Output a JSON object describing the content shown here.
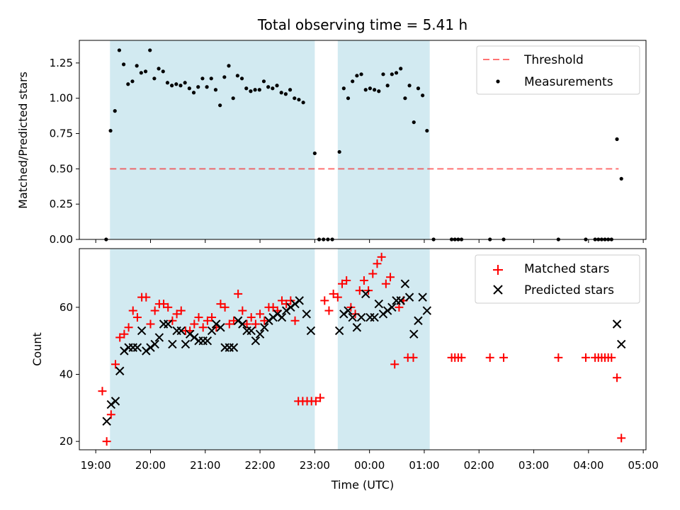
{
  "figure": {
    "title": "Total observing time = 5.41 h",
    "xlabel": "Time (UTC)",
    "x_ticks": [
      "19:00",
      "20:00",
      "21:00",
      "22:00",
      "23:00",
      "00:00",
      "01:00",
      "02:00",
      "03:00",
      "04:00",
      "05:00"
    ],
    "x_range_hours": [
      18.7,
      29.05
    ],
    "shaded_intervals_hours": [
      [
        19.26,
        23.0
      ],
      [
        23.42,
        25.1
      ]
    ],
    "colors": {
      "shade": "#add8e6",
      "threshold": "#ff0000",
      "matched": "#ff0000",
      "predicted": "#000000",
      "measurements": "#000000"
    }
  },
  "chart_data": [
    {
      "type": "scatter",
      "ylabel": "Matched/Predicted stars",
      "ylim": [
        0,
        1.41
      ],
      "yticks": [
        "0.00",
        "0.25",
        "0.50",
        "0.75",
        "1.00",
        "1.25"
      ],
      "legend_position": "top-right",
      "threshold": {
        "name": "Threshold",
        "y": 0.5,
        "x_range": [
          19.26,
          28.55
        ]
      },
      "series": [
        {
          "name": "Measurements",
          "points": [
            [
              19.19,
              0
            ],
            [
              19.27,
              0.77
            ],
            [
              19.35,
              0.91
            ],
            [
              19.43,
              1.34
            ],
            [
              19.51,
              1.24
            ],
            [
              19.59,
              1.1
            ],
            [
              19.67,
              1.12
            ],
            [
              19.75,
              1.23
            ],
            [
              19.83,
              1.18
            ],
            [
              19.91,
              1.19
            ],
            [
              19.99,
              1.34
            ],
            [
              20.07,
              1.14
            ],
            [
              20.15,
              1.21
            ],
            [
              20.23,
              1.19
            ],
            [
              20.31,
              1.11
            ],
            [
              20.39,
              1.09
            ],
            [
              20.47,
              1.1
            ],
            [
              20.55,
              1.09
            ],
            [
              20.63,
              1.11
            ],
            [
              20.71,
              1.07
            ],
            [
              20.79,
              1.04
            ],
            [
              20.87,
              1.08
            ],
            [
              20.95,
              1.14
            ],
            [
              21.03,
              1.08
            ],
            [
              21.11,
              1.14
            ],
            [
              21.19,
              1.06
            ],
            [
              21.27,
              0.95
            ],
            [
              21.35,
              1.15
            ],
            [
              21.43,
              1.23
            ],
            [
              21.51,
              1.0
            ],
            [
              21.59,
              1.16
            ],
            [
              21.67,
              1.14
            ],
            [
              21.75,
              1.07
            ],
            [
              21.83,
              1.05
            ],
            [
              21.91,
              1.06
            ],
            [
              21.99,
              1.06
            ],
            [
              22.07,
              1.12
            ],
            [
              22.15,
              1.08
            ],
            [
              22.23,
              1.07
            ],
            [
              22.31,
              1.09
            ],
            [
              22.39,
              1.04
            ],
            [
              22.47,
              1.03
            ],
            [
              22.55,
              1.06
            ],
            [
              22.63,
              1.0
            ],
            [
              22.71,
              0.99
            ],
            [
              22.79,
              0.97
            ],
            [
              23.0,
              0.61
            ],
            [
              23.08,
              0
            ],
            [
              23.16,
              0
            ],
            [
              23.24,
              0
            ],
            [
              23.32,
              0
            ],
            [
              23.45,
              0.62
            ],
            [
              23.53,
              1.07
            ],
            [
              23.61,
              1.0
            ],
            [
              23.69,
              1.12
            ],
            [
              23.77,
              1.16
            ],
            [
              23.85,
              1.17
            ],
            [
              23.93,
              1.06
            ],
            [
              24.01,
              1.07
            ],
            [
              24.09,
              1.06
            ],
            [
              24.17,
              1.05
            ],
            [
              24.25,
              1.17
            ],
            [
              24.33,
              1.09
            ],
            [
              24.41,
              1.17
            ],
            [
              24.49,
              1.18
            ],
            [
              24.57,
              1.21
            ],
            [
              24.65,
              1.0
            ],
            [
              24.73,
              1.09
            ],
            [
              24.81,
              0.83
            ],
            [
              24.89,
              1.07
            ],
            [
              24.97,
              1.02
            ],
            [
              25.05,
              0.77
            ],
            [
              25.17,
              0
            ],
            [
              25.5,
              0
            ],
            [
              25.56,
              0
            ],
            [
              25.62,
              0
            ],
            [
              25.68,
              0
            ],
            [
              26.2,
              0
            ],
            [
              26.45,
              0
            ],
            [
              27.45,
              0
            ],
            [
              27.95,
              0
            ],
            [
              28.12,
              0
            ],
            [
              28.18,
              0
            ],
            [
              28.24,
              0
            ],
            [
              28.3,
              0
            ],
            [
              28.36,
              0
            ],
            [
              28.42,
              0
            ],
            [
              28.52,
              0.71
            ],
            [
              28.6,
              0.43
            ]
          ]
        }
      ]
    },
    {
      "type": "scatter",
      "ylabel": "Count",
      "ylim": [
        17.5,
        77.5
      ],
      "yticks": [
        "20",
        "40",
        "60"
      ],
      "legend_position": "top-right",
      "series": [
        {
          "name": "Matched stars",
          "marker": "plus",
          "points": [
            [
              19.12,
              35
            ],
            [
              19.2,
              20
            ],
            [
              19.28,
              28
            ],
            [
              19.36,
              43
            ],
            [
              19.44,
              51
            ],
            [
              19.52,
              52
            ],
            [
              19.6,
              54
            ],
            [
              19.68,
              59
            ],
            [
              19.76,
              57
            ],
            [
              19.84,
              63
            ],
            [
              19.92,
              63
            ],
            [
              20.0,
              55
            ],
            [
              20.08,
              59
            ],
            [
              20.16,
              61
            ],
            [
              20.24,
              61
            ],
            [
              20.32,
              60
            ],
            [
              20.4,
              56
            ],
            [
              20.48,
              58
            ],
            [
              20.56,
              59
            ],
            [
              20.64,
              53
            ],
            [
              20.72,
              53
            ],
            [
              20.8,
              55
            ],
            [
              20.88,
              57
            ],
            [
              20.96,
              54
            ],
            [
              21.04,
              56
            ],
            [
              21.12,
              57
            ],
            [
              21.2,
              54
            ],
            [
              21.28,
              61
            ],
            [
              21.36,
              60
            ],
            [
              21.44,
              55
            ],
            [
              21.52,
              56
            ],
            [
              21.6,
              64
            ],
            [
              21.68,
              59
            ],
            [
              21.76,
              55
            ],
            [
              21.84,
              57
            ],
            [
              21.92,
              55
            ],
            [
              22.0,
              58
            ],
            [
              22.08,
              56
            ],
            [
              22.16,
              60
            ],
            [
              22.24,
              60
            ],
            [
              22.32,
              59
            ],
            [
              22.4,
              62
            ],
            [
              22.48,
              61
            ],
            [
              22.56,
              62
            ],
            [
              22.64,
              56
            ],
            [
              22.7,
              32
            ],
            [
              22.78,
              32
            ],
            [
              22.86,
              32
            ],
            [
              22.94,
              32
            ],
            [
              23.02,
              32
            ],
            [
              23.1,
              33
            ],
            [
              23.18,
              62
            ],
            [
              23.26,
              59
            ],
            [
              23.34,
              64
            ],
            [
              23.42,
              63
            ],
            [
              23.5,
              67
            ],
            [
              23.58,
              68
            ],
            [
              23.66,
              60
            ],
            [
              23.74,
              58
            ],
            [
              23.82,
              65
            ],
            [
              23.9,
              68
            ],
            [
              23.98,
              65
            ],
            [
              24.06,
              70
            ],
            [
              24.14,
              73
            ],
            [
              24.22,
              75
            ],
            [
              24.3,
              67
            ],
            [
              24.38,
              69
            ],
            [
              24.46,
              43
            ],
            [
              24.54,
              60
            ],
            [
              24.62,
              62
            ],
            [
              24.7,
              45
            ],
            [
              24.8,
              45
            ],
            [
              25.5,
              45
            ],
            [
              25.56,
              45
            ],
            [
              25.62,
              45
            ],
            [
              25.68,
              45
            ],
            [
              26.2,
              45
            ],
            [
              26.45,
              45
            ],
            [
              27.45,
              45
            ],
            [
              27.95,
              45
            ],
            [
              28.12,
              45
            ],
            [
              28.18,
              45
            ],
            [
              28.24,
              45
            ],
            [
              28.3,
              45
            ],
            [
              28.36,
              45
            ],
            [
              28.42,
              45
            ],
            [
              28.52,
              39
            ],
            [
              28.6,
              21
            ]
          ]
        },
        {
          "name": "Predicted stars",
          "marker": "x",
          "points": [
            [
              19.2,
              26
            ],
            [
              19.28,
              31
            ],
            [
              19.36,
              32
            ],
            [
              19.44,
              41
            ],
            [
              19.52,
              47
            ],
            [
              19.6,
              48
            ],
            [
              19.68,
              48
            ],
            [
              19.76,
              48
            ],
            [
              19.84,
              53
            ],
            [
              19.92,
              47
            ],
            [
              20.0,
              48
            ],
            [
              20.08,
              49
            ],
            [
              20.16,
              51
            ],
            [
              20.24,
              55
            ],
            [
              20.32,
              55
            ],
            [
              20.4,
              49
            ],
            [
              20.48,
              53
            ],
            [
              20.56,
              53
            ],
            [
              20.64,
              49
            ],
            [
              20.72,
              52
            ],
            [
              20.8,
              51
            ],
            [
              20.88,
              50
            ],
            [
              20.96,
              50
            ],
            [
              21.04,
              50
            ],
            [
              21.12,
              53
            ],
            [
              21.2,
              55
            ],
            [
              21.28,
              54
            ],
            [
              21.36,
              48
            ],
            [
              21.44,
              48
            ],
            [
              21.52,
              48
            ],
            [
              21.6,
              56
            ],
            [
              21.68,
              55
            ],
            [
              21.76,
              53
            ],
            [
              21.84,
              53
            ],
            [
              21.92,
              50
            ],
            [
              22.0,
              52
            ],
            [
              22.08,
              54
            ],
            [
              22.16,
              56
            ],
            [
              22.24,
              57
            ],
            [
              22.32,
              58
            ],
            [
              22.4,
              57
            ],
            [
              22.48,
              59
            ],
            [
              22.56,
              60
            ],
            [
              22.64,
              61
            ],
            [
              22.72,
              62
            ],
            [
              22.85,
              58
            ],
            [
              22.93,
              53
            ],
            [
              23.45,
              53
            ],
            [
              23.53,
              58
            ],
            [
              23.61,
              59
            ],
            [
              23.69,
              57
            ],
            [
              23.77,
              54
            ],
            [
              23.85,
              57
            ],
            [
              23.93,
              64
            ],
            [
              24.01,
              57
            ],
            [
              24.09,
              57
            ],
            [
              24.17,
              61
            ],
            [
              24.25,
              58
            ],
            [
              24.33,
              59
            ],
            [
              24.41,
              60
            ],
            [
              24.49,
              62
            ],
            [
              24.57,
              62
            ],
            [
              24.65,
              67
            ],
            [
              24.73,
              63
            ],
            [
              24.81,
              52
            ],
            [
              24.89,
              56
            ],
            [
              24.97,
              63
            ],
            [
              25.05,
              59
            ],
            [
              28.52,
              55
            ],
            [
              28.6,
              49
            ]
          ]
        }
      ]
    }
  ]
}
